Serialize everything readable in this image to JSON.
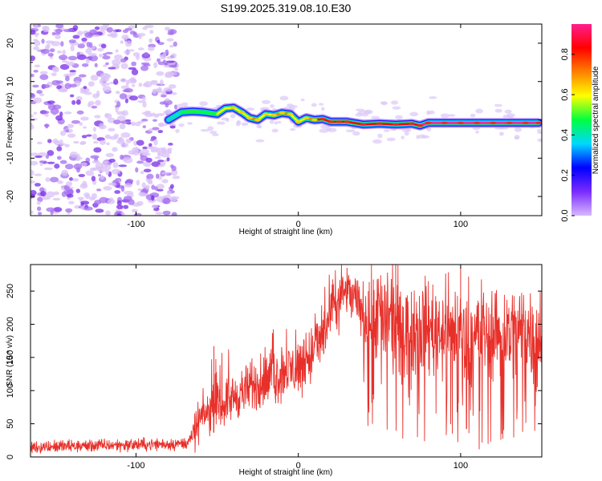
{
  "title": "S199.2025.319.08.10.E30",
  "chart_data": [
    {
      "type": "heatmap",
      "xlabel": "Height of straight line (km)",
      "ylabel": "Frequency (Hz)",
      "xlim": [
        -165,
        150
      ],
      "ylim": [
        -25,
        25
      ],
      "xticks": [
        -100,
        0,
        100
      ],
      "yticks": [
        -20,
        -10,
        0,
        10,
        20
      ],
      "colorbar": {
        "label": "Normalized spectral amplitude",
        "range": [
          0,
          0.95
        ],
        "ticks": [
          0.0,
          0.2,
          0.4,
          0.6,
          0.8
        ],
        "colors": [
          "#d8b8ff",
          "#7a2cff",
          "#0000ff",
          "#00d8ff",
          "#00ff40",
          "#ffff00",
          "#ff8000",
          "#ff0000",
          "#ff1f8f"
        ]
      },
      "noise_region_x": [
        -165,
        -75
      ],
      "ridge": {
        "x": [
          -80,
          -72,
          -65,
          -58,
          -50,
          -45,
          -40,
          -35,
          -30,
          -25,
          -20,
          -15,
          -10,
          -5,
          0,
          5,
          10,
          15,
          20,
          25,
          30,
          40,
          50,
          60,
          70,
          75,
          80,
          90,
          100,
          110,
          120,
          130,
          140,
          148
        ],
        "freq": [
          0,
          2,
          2.2,
          2,
          1.5,
          3,
          3.2,
          2,
          0.5,
          0,
          1.5,
          1.2,
          1.8,
          1.5,
          -0.5,
          0.5,
          0,
          0.2,
          -0.5,
          -0.5,
          -0.5,
          -1.2,
          -1,
          -1.2,
          -1,
          -1.5,
          -0.8,
          -0.8,
          -0.8,
          -0.8,
          -0.8,
          -0.8,
          -0.8,
          -0.8
        ],
        "amplitude": [
          0.25,
          0.4,
          0.5,
          0.5,
          0.55,
          0.55,
          0.6,
          0.6,
          0.7,
          0.65,
          0.6,
          0.65,
          0.7,
          0.7,
          0.6,
          0.7,
          0.75,
          0.8,
          0.8,
          0.8,
          0.8,
          0.85,
          0.9,
          0.85,
          0.85,
          0.9,
          0.95,
          0.95,
          0.95,
          0.95,
          0.95,
          0.95,
          0.95,
          0.95
        ]
      }
    },
    {
      "type": "line",
      "xlabel": "Height of straight line (km)",
      "ylabel": "SNR (10 * v/v)",
      "xlim": [
        -165,
        150
      ],
      "ylim": [
        0,
        290
      ],
      "xticks": [
        -100,
        0,
        100
      ],
      "yticks": [
        0,
        50,
        100,
        150,
        200,
        250
      ],
      "color": "#e8302a",
      "trend": {
        "x": [
          -165,
          -70,
          -65,
          -60,
          -40,
          -20,
          0,
          10,
          20,
          27,
          30,
          40,
          60,
          80,
          100,
          150
        ],
        "y": [
          15,
          20,
          30,
          60,
          90,
          115,
          135,
          160,
          210,
          245,
          250,
          220,
          205,
          195,
          190,
          190
        ]
      },
      "peaks": [
        {
          "x": -52,
          "y": 167
        },
        {
          "x": 30,
          "y": 285
        },
        {
          "x": 60,
          "y": 290
        },
        {
          "x": 100,
          "y": 285
        }
      ]
    }
  ]
}
